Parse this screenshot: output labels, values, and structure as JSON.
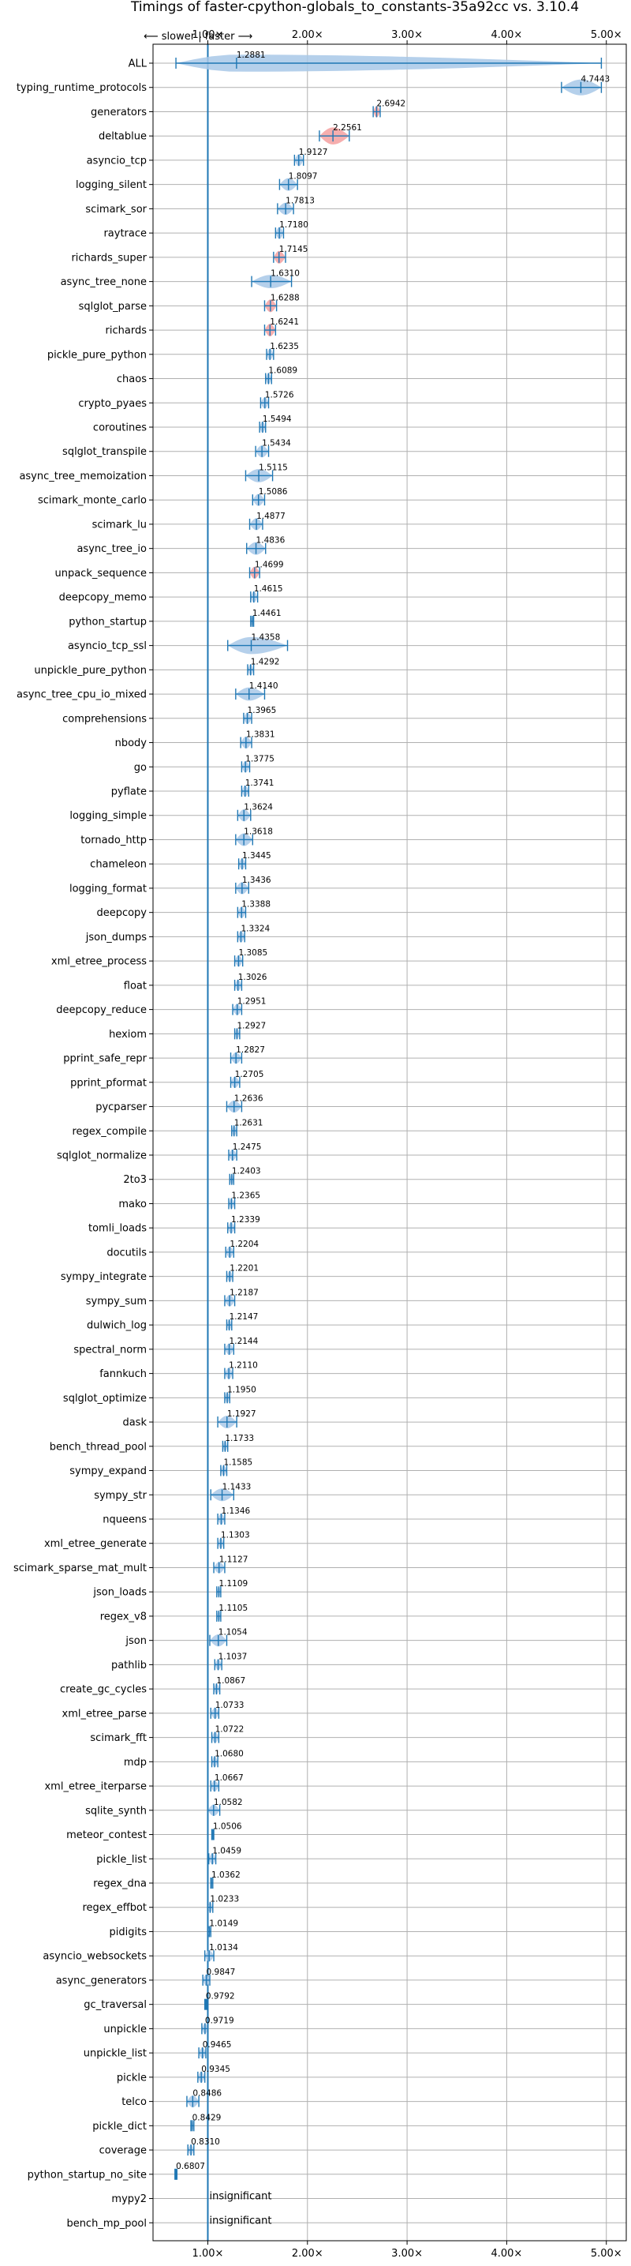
{
  "chart_data": {
    "type": "violin",
    "title": "Timings of faster-cpython-globals_to_constants-35a92cc vs. 3.10.4",
    "direction_label": "⟵ slower | faster ⟶",
    "xlim": [
      0.45,
      5.2
    ],
    "xticks": [
      1,
      2,
      3,
      4,
      5
    ],
    "xtick_labels": [
      "1.00×",
      "2.00×",
      "3.00×",
      "4.00×",
      "5.00×"
    ],
    "grid": true,
    "reference_line": 1.0,
    "colors": {
      "violin": "#a8c8e8",
      "violin_sig": "#f4a0a0",
      "axis_blue": "#1f77b4"
    },
    "benchmarks": [
      {
        "name": "ALL",
        "value": 1.2881,
        "min": 0.68,
        "max": 4.95,
        "spread": 0.12,
        "color": "blue"
      },
      {
        "name": "typing_runtime_protocols",
        "value": 4.7443,
        "min": 4.55,
        "max": 4.95,
        "spread": 0.1,
        "color": "blue"
      },
      {
        "name": "generators",
        "value": 2.6942,
        "min": 2.66,
        "max": 2.73,
        "spread": 0.03,
        "color": "red"
      },
      {
        "name": "deltablue",
        "value": 2.2561,
        "min": 2.12,
        "max": 2.42,
        "spread": 0.12,
        "color": "red"
      },
      {
        "name": "asyncio_tcp",
        "value": 1.9127,
        "min": 1.87,
        "max": 1.96,
        "spread": 0.04,
        "color": "blue"
      },
      {
        "name": "logging_silent",
        "value": 1.8097,
        "min": 1.72,
        "max": 1.9,
        "spread": 0.05,
        "color": "blue"
      },
      {
        "name": "scimark_sor",
        "value": 1.7813,
        "min": 1.7,
        "max": 1.86,
        "spread": 0.04,
        "color": "blue"
      },
      {
        "name": "raytrace",
        "value": 1.718,
        "min": 1.68,
        "max": 1.76,
        "spread": 0.04,
        "color": "blue"
      },
      {
        "name": "richards_super",
        "value": 1.7145,
        "min": 1.66,
        "max": 1.78,
        "spread": 0.05,
        "color": "red"
      },
      {
        "name": "async_tree_none",
        "value": 1.631,
        "min": 1.44,
        "max": 1.84,
        "spread": 0.06,
        "color": "blue"
      },
      {
        "name": "sqlglot_parse",
        "value": 1.6288,
        "min": 1.57,
        "max": 1.69,
        "spread": 0.05,
        "color": "red"
      },
      {
        "name": "richards",
        "value": 1.6241,
        "min": 1.57,
        "max": 1.68,
        "spread": 0.05,
        "color": "red"
      },
      {
        "name": "pickle_pure_python",
        "value": 1.6235,
        "min": 1.59,
        "max": 1.66,
        "spread": 0.03,
        "color": "blue"
      },
      {
        "name": "chaos",
        "value": 1.6089,
        "min": 1.58,
        "max": 1.64,
        "spread": 0.03,
        "color": "blue"
      },
      {
        "name": "crypto_pyaes",
        "value": 1.5726,
        "min": 1.53,
        "max": 1.61,
        "spread": 0.03,
        "color": "blue"
      },
      {
        "name": "coroutines",
        "value": 1.5494,
        "min": 1.52,
        "max": 1.58,
        "spread": 0.03,
        "color": "blue"
      },
      {
        "name": "sqlglot_transpile",
        "value": 1.5434,
        "min": 1.48,
        "max": 1.61,
        "spread": 0.04,
        "color": "blue"
      },
      {
        "name": "async_tree_memoization",
        "value": 1.5115,
        "min": 1.38,
        "max": 1.65,
        "spread": 0.06,
        "color": "blue"
      },
      {
        "name": "scimark_monte_carlo",
        "value": 1.5086,
        "min": 1.45,
        "max": 1.57,
        "spread": 0.04,
        "color": "blue"
      },
      {
        "name": "scimark_lu",
        "value": 1.4877,
        "min": 1.42,
        "max": 1.55,
        "spread": 0.04,
        "color": "blue"
      },
      {
        "name": "async_tree_io",
        "value": 1.4836,
        "min": 1.39,
        "max": 1.58,
        "spread": 0.05,
        "color": "blue"
      },
      {
        "name": "unpack_sequence",
        "value": 1.4699,
        "min": 1.42,
        "max": 1.52,
        "spread": 0.04,
        "color": "red"
      },
      {
        "name": "deepcopy_memo",
        "value": 1.4615,
        "min": 1.43,
        "max": 1.5,
        "spread": 0.03,
        "color": "blue"
      },
      {
        "name": "python_startup",
        "value": 1.4461,
        "min": 1.43,
        "max": 1.46,
        "spread": 0.01,
        "color": "blue"
      },
      {
        "name": "asyncio_tcp_ssl",
        "value": 1.4358,
        "min": 1.2,
        "max": 1.8,
        "spread": 0.12,
        "color": "blue"
      },
      {
        "name": "unpickle_pure_python",
        "value": 1.4292,
        "min": 1.4,
        "max": 1.46,
        "spread": 0.03,
        "color": "blue"
      },
      {
        "name": "async_tree_cpu_io_mixed",
        "value": 1.414,
        "min": 1.28,
        "max": 1.57,
        "spread": 0.06,
        "color": "blue"
      },
      {
        "name": "comprehensions",
        "value": 1.3965,
        "min": 1.36,
        "max": 1.44,
        "spread": 0.03,
        "color": "blue"
      },
      {
        "name": "nbody",
        "value": 1.3831,
        "min": 1.33,
        "max": 1.44,
        "spread": 0.04,
        "color": "blue"
      },
      {
        "name": "go",
        "value": 1.3775,
        "min": 1.34,
        "max": 1.42,
        "spread": 0.03,
        "color": "blue"
      },
      {
        "name": "pyflate",
        "value": 1.3741,
        "min": 1.34,
        "max": 1.41,
        "spread": 0.03,
        "color": "blue"
      },
      {
        "name": "logging_simple",
        "value": 1.3624,
        "min": 1.3,
        "max": 1.43,
        "spread": 0.04,
        "color": "blue"
      },
      {
        "name": "tornado_http",
        "value": 1.3618,
        "min": 1.28,
        "max": 1.45,
        "spread": 0.05,
        "color": "blue"
      },
      {
        "name": "chameleon",
        "value": 1.3445,
        "min": 1.31,
        "max": 1.38,
        "spread": 0.03,
        "color": "blue"
      },
      {
        "name": "logging_format",
        "value": 1.3436,
        "min": 1.28,
        "max": 1.41,
        "spread": 0.04,
        "color": "blue"
      },
      {
        "name": "deepcopy",
        "value": 1.3388,
        "min": 1.3,
        "max": 1.38,
        "spread": 0.03,
        "color": "blue"
      },
      {
        "name": "json_dumps",
        "value": 1.3324,
        "min": 1.3,
        "max": 1.37,
        "spread": 0.03,
        "color": "blue"
      },
      {
        "name": "xml_etree_process",
        "value": 1.3085,
        "min": 1.27,
        "max": 1.35,
        "spread": 0.03,
        "color": "blue"
      },
      {
        "name": "float",
        "value": 1.3026,
        "min": 1.27,
        "max": 1.34,
        "spread": 0.03,
        "color": "blue"
      },
      {
        "name": "deepcopy_reduce",
        "value": 1.2951,
        "min": 1.25,
        "max": 1.34,
        "spread": 0.03,
        "color": "blue"
      },
      {
        "name": "hexiom",
        "value": 1.2927,
        "min": 1.27,
        "max": 1.32,
        "spread": 0.02,
        "color": "blue"
      },
      {
        "name": "pprint_safe_repr",
        "value": 1.2827,
        "min": 1.23,
        "max": 1.34,
        "spread": 0.03,
        "color": "blue"
      },
      {
        "name": "pprint_pformat",
        "value": 1.2705,
        "min": 1.23,
        "max": 1.32,
        "spread": 0.03,
        "color": "blue"
      },
      {
        "name": "pycparser",
        "value": 1.2636,
        "min": 1.19,
        "max": 1.34,
        "spread": 0.04,
        "color": "blue"
      },
      {
        "name": "regex_compile",
        "value": 1.2631,
        "min": 1.24,
        "max": 1.29,
        "spread": 0.02,
        "color": "blue"
      },
      {
        "name": "sqlglot_normalize",
        "value": 1.2475,
        "min": 1.21,
        "max": 1.29,
        "spread": 0.03,
        "color": "blue"
      },
      {
        "name": "2to3",
        "value": 1.2403,
        "min": 1.22,
        "max": 1.26,
        "spread": 0.02,
        "color": "blue"
      },
      {
        "name": "mako",
        "value": 1.2365,
        "min": 1.21,
        "max": 1.27,
        "spread": 0.02,
        "color": "blue"
      },
      {
        "name": "tomli_loads",
        "value": 1.2339,
        "min": 1.2,
        "max": 1.27,
        "spread": 0.03,
        "color": "blue"
      },
      {
        "name": "docutils",
        "value": 1.2204,
        "min": 1.18,
        "max": 1.26,
        "spread": 0.03,
        "color": "blue"
      },
      {
        "name": "sympy_integrate",
        "value": 1.2201,
        "min": 1.19,
        "max": 1.25,
        "spread": 0.02,
        "color": "blue"
      },
      {
        "name": "sympy_sum",
        "value": 1.2187,
        "min": 1.17,
        "max": 1.27,
        "spread": 0.03,
        "color": "blue"
      },
      {
        "name": "dulwich_log",
        "value": 1.2147,
        "min": 1.19,
        "max": 1.24,
        "spread": 0.02,
        "color": "blue"
      },
      {
        "name": "spectral_norm",
        "value": 1.2144,
        "min": 1.17,
        "max": 1.26,
        "spread": 0.03,
        "color": "blue"
      },
      {
        "name": "fannkuch",
        "value": 1.211,
        "min": 1.17,
        "max": 1.25,
        "spread": 0.03,
        "color": "blue"
      },
      {
        "name": "sqlglot_optimize",
        "value": 1.195,
        "min": 1.17,
        "max": 1.22,
        "spread": 0.02,
        "color": "blue"
      },
      {
        "name": "dask",
        "value": 1.1927,
        "min": 1.1,
        "max": 1.29,
        "spread": 0.05,
        "color": "blue"
      },
      {
        "name": "bench_thread_pool",
        "value": 1.1733,
        "min": 1.15,
        "max": 1.2,
        "spread": 0.02,
        "color": "blue"
      },
      {
        "name": "sympy_expand",
        "value": 1.1585,
        "min": 1.13,
        "max": 1.19,
        "spread": 0.02,
        "color": "blue"
      },
      {
        "name": "sympy_str",
        "value": 1.1433,
        "min": 1.03,
        "max": 1.26,
        "spread": 0.05,
        "color": "blue"
      },
      {
        "name": "nqueens",
        "value": 1.1346,
        "min": 1.1,
        "max": 1.17,
        "spread": 0.03,
        "color": "blue"
      },
      {
        "name": "xml_etree_generate",
        "value": 1.1303,
        "min": 1.1,
        "max": 1.16,
        "spread": 0.02,
        "color": "blue"
      },
      {
        "name": "scimark_sparse_mat_mult",
        "value": 1.1127,
        "min": 1.06,
        "max": 1.17,
        "spread": 0.03,
        "color": "blue"
      },
      {
        "name": "json_loads",
        "value": 1.1109,
        "min": 1.09,
        "max": 1.13,
        "spread": 0.02,
        "color": "blue"
      },
      {
        "name": "regex_v8",
        "value": 1.1105,
        "min": 1.09,
        "max": 1.13,
        "spread": 0.02,
        "color": "blue"
      },
      {
        "name": "json",
        "value": 1.1054,
        "min": 1.02,
        "max": 1.19,
        "spread": 0.04,
        "color": "blue"
      },
      {
        "name": "pathlib",
        "value": 1.1037,
        "min": 1.07,
        "max": 1.14,
        "spread": 0.02,
        "color": "blue"
      },
      {
        "name": "create_gc_cycles",
        "value": 1.0867,
        "min": 1.06,
        "max": 1.12,
        "spread": 0.02,
        "color": "blue"
      },
      {
        "name": "xml_etree_parse",
        "value": 1.0733,
        "min": 1.03,
        "max": 1.11,
        "spread": 0.03,
        "color": "blue"
      },
      {
        "name": "scimark_fft",
        "value": 1.0722,
        "min": 1.04,
        "max": 1.11,
        "spread": 0.03,
        "color": "blue"
      },
      {
        "name": "mdp",
        "value": 1.068,
        "min": 1.04,
        "max": 1.1,
        "spread": 0.02,
        "color": "blue"
      },
      {
        "name": "xml_etree_iterparse",
        "value": 1.0667,
        "min": 1.03,
        "max": 1.11,
        "spread": 0.03,
        "color": "blue"
      },
      {
        "name": "sqlite_synth",
        "value": 1.0582,
        "min": 1.0,
        "max": 1.12,
        "spread": 0.03,
        "color": "blue"
      },
      {
        "name": "meteor_contest",
        "value": 1.0506,
        "min": 1.04,
        "max": 1.06,
        "spread": 0.01,
        "color": "blue"
      },
      {
        "name": "pickle_list",
        "value": 1.0459,
        "min": 1.01,
        "max": 1.08,
        "spread": 0.03,
        "color": "blue"
      },
      {
        "name": "regex_dna",
        "value": 1.0362,
        "min": 1.03,
        "max": 1.05,
        "spread": 0.01,
        "color": "blue"
      },
      {
        "name": "regex_effbot",
        "value": 1.0233,
        "min": 1.0,
        "max": 1.05,
        "spread": 0.02,
        "color": "blue"
      },
      {
        "name": "pidigits",
        "value": 1.0149,
        "min": 1.0,
        "max": 1.03,
        "spread": 0.01,
        "color": "blue"
      },
      {
        "name": "asyncio_websockets",
        "value": 1.0134,
        "min": 0.97,
        "max": 1.06,
        "spread": 0.03,
        "color": "blue"
      },
      {
        "name": "async_generators",
        "value": 0.9847,
        "min": 0.95,
        "max": 1.02,
        "spread": 0.03,
        "color": "blue"
      },
      {
        "name": "gc_traversal",
        "value": 0.9792,
        "min": 0.97,
        "max": 0.99,
        "spread": 0.01,
        "color": "blue"
      },
      {
        "name": "unpickle",
        "value": 0.9719,
        "min": 0.94,
        "max": 1.0,
        "spread": 0.02,
        "color": "blue"
      },
      {
        "name": "unpickle_list",
        "value": 0.9465,
        "min": 0.91,
        "max": 0.98,
        "spread": 0.03,
        "color": "blue"
      },
      {
        "name": "pickle",
        "value": 0.9345,
        "min": 0.9,
        "max": 0.97,
        "spread": 0.03,
        "color": "blue"
      },
      {
        "name": "telco",
        "value": 0.8486,
        "min": 0.79,
        "max": 0.91,
        "spread": 0.04,
        "color": "blue"
      },
      {
        "name": "pickle_dict",
        "value": 0.8429,
        "min": 0.83,
        "max": 0.86,
        "spread": 0.01,
        "color": "blue"
      },
      {
        "name": "coverage",
        "value": 0.831,
        "min": 0.8,
        "max": 0.86,
        "spread": 0.02,
        "color": "blue"
      },
      {
        "name": "python_startup_no_site",
        "value": 0.6807,
        "min": 0.67,
        "max": 0.69,
        "spread": 0.01,
        "color": "blue"
      },
      {
        "name": "mypy2",
        "value": null,
        "label": "insignificant"
      },
      {
        "name": "bench_mp_pool",
        "value": null,
        "label": "insignificant"
      }
    ]
  }
}
